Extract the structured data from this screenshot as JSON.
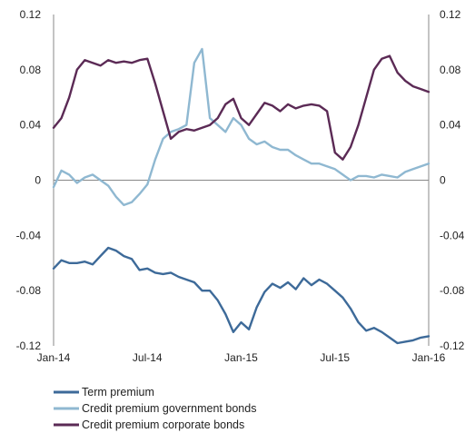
{
  "chart_data": {
    "type": "line",
    "title": "",
    "xlabel": "",
    "ylabel": "",
    "x_ticks": [
      "Jan-14",
      "Jul-14",
      "Jan-15",
      "Jul-15",
      "Jan-16"
    ],
    "xlim": [
      0,
      24
    ],
    "ylim": [
      -0.12,
      0.12
    ],
    "y_ticks": [
      "0.12",
      "0.08",
      "0.04",
      "0",
      "-0.04",
      "-0.08",
      "-0.12"
    ],
    "y_tick_values": [
      0.12,
      0.08,
      0.04,
      0,
      -0.04,
      -0.08,
      -0.12
    ],
    "grid": false,
    "legend_position": "bottom-left",
    "series": [
      {
        "name": "Term premium",
        "color": "#3d6a99",
        "x": [
          0,
          0.5,
          1,
          1.5,
          2,
          2.5,
          3,
          3.5,
          4,
          4.5,
          5,
          5.5,
          6,
          6.5,
          7,
          7.5,
          8,
          8.5,
          9,
          9.5,
          10,
          10.5,
          11,
          11.5,
          12,
          12.5,
          13,
          13.5,
          14,
          14.5,
          15,
          15.5,
          16,
          16.5,
          17,
          17.5,
          18,
          18.5,
          19,
          19.5,
          20,
          20.5,
          21,
          21.5,
          22,
          22.5,
          23,
          23.5,
          24
        ],
        "y": [
          -0.064,
          -0.058,
          -0.06,
          -0.06,
          -0.059,
          -0.061,
          -0.055,
          -0.049,
          -0.051,
          -0.055,
          -0.057,
          -0.065,
          -0.064,
          -0.067,
          -0.068,
          -0.067,
          -0.07,
          -0.072,
          -0.074,
          -0.08,
          -0.08,
          -0.087,
          -0.097,
          -0.11,
          -0.103,
          -0.108,
          -0.092,
          -0.081,
          -0.075,
          -0.078,
          -0.074,
          -0.079,
          -0.071,
          -0.076,
          -0.072,
          -0.075,
          -0.08,
          -0.085,
          -0.093,
          -0.103,
          -0.109,
          -0.107,
          -0.11,
          -0.114,
          -0.118,
          -0.117,
          -0.116,
          -0.114,
          -0.113
        ]
      },
      {
        "name": "Credit premium government bonds",
        "color": "#8fb8d1",
        "x": [
          0,
          0.5,
          1,
          1.5,
          2,
          2.5,
          3,
          3.5,
          4,
          4.5,
          5,
          5.5,
          6,
          6.5,
          7,
          7.5,
          8,
          8.5,
          9,
          9.5,
          10,
          10.5,
          11,
          11.5,
          12,
          12.5,
          13,
          13.5,
          14,
          14.5,
          15,
          15.5,
          16,
          16.5,
          17,
          17.5,
          18,
          18.5,
          19,
          19.5,
          20,
          20.5,
          21,
          21.5,
          22,
          22.5,
          23,
          23.5,
          24
        ],
        "y": [
          -0.005,
          0.007,
          0.004,
          -0.002,
          0.002,
          0.004,
          0.0,
          -0.004,
          -0.012,
          -0.018,
          -0.016,
          -0.01,
          -0.003,
          0.015,
          0.03,
          0.035,
          0.037,
          0.04,
          0.085,
          0.095,
          0.045,
          0.04,
          0.035,
          0.045,
          0.04,
          0.03,
          0.026,
          0.028,
          0.024,
          0.022,
          0.022,
          0.018,
          0.015,
          0.012,
          0.012,
          0.01,
          0.008,
          0.004,
          0.0,
          0.003,
          0.003,
          0.002,
          0.004,
          0.003,
          0.002,
          0.006,
          0.008,
          0.01,
          0.012
        ]
      },
      {
        "name": "Credit premium corporate bonds",
        "color": "#5b2a55",
        "x": [
          0,
          0.5,
          1,
          1.5,
          2,
          2.5,
          3,
          3.5,
          4,
          4.5,
          5,
          5.5,
          6,
          6.5,
          7,
          7.5,
          8,
          8.5,
          9,
          9.5,
          10,
          10.5,
          11,
          11.5,
          12,
          12.5,
          13,
          13.5,
          14,
          14.5,
          15,
          15.5,
          16,
          16.5,
          17,
          17.5,
          18,
          18.5,
          19,
          19.5,
          20,
          20.5,
          21,
          21.5,
          22,
          22.5,
          23,
          23.5,
          24
        ],
        "y": [
          0.038,
          0.045,
          0.06,
          0.08,
          0.087,
          0.085,
          0.083,
          0.087,
          0.085,
          0.086,
          0.085,
          0.087,
          0.088,
          0.07,
          0.05,
          0.03,
          0.035,
          0.037,
          0.036,
          0.038,
          0.04,
          0.045,
          0.055,
          0.059,
          0.045,
          0.04,
          0.048,
          0.056,
          0.054,
          0.05,
          0.055,
          0.052,
          0.054,
          0.055,
          0.054,
          0.05,
          0.02,
          0.015,
          0.024,
          0.04,
          0.06,
          0.08,
          0.088,
          0.09,
          0.078,
          0.072,
          0.068,
          0.066,
          0.064
        ]
      }
    ]
  }
}
